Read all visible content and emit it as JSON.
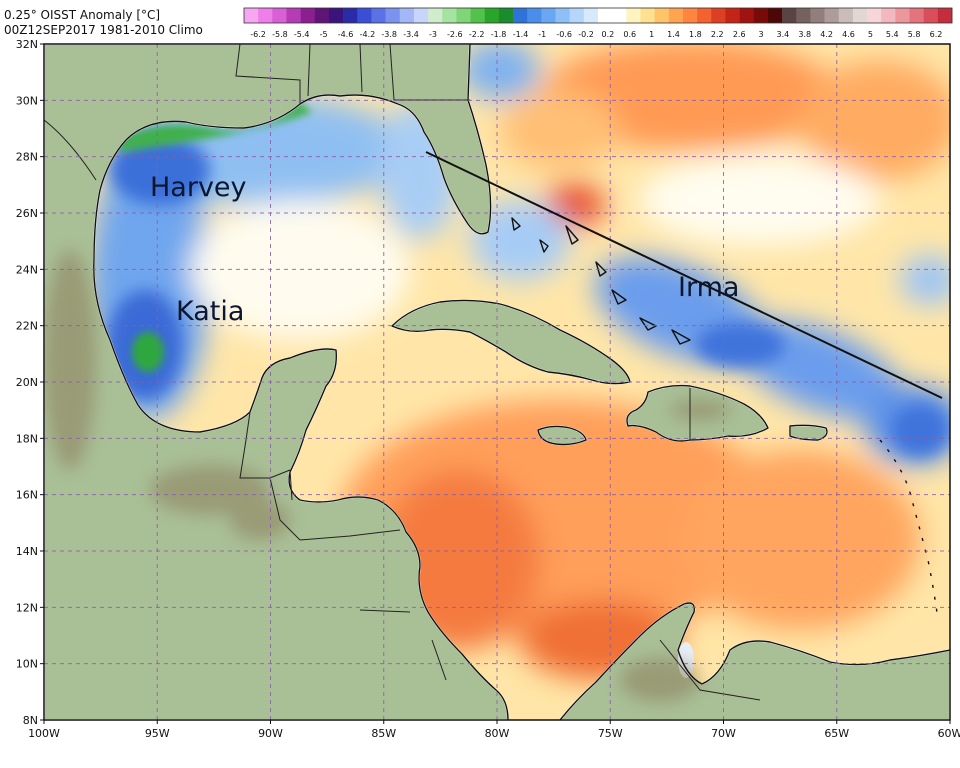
{
  "header": {
    "title_line1": "0.25° OISST Anomaly [°C]",
    "title_line2": "00Z12SEP2017 1981-2010 Climo"
  },
  "colorbar": {
    "labels": [
      "-6.2",
      "-5.8",
      "-5.4",
      "-5",
      "-4.6",
      "-4.2",
      "-3.8",
      "-3.4",
      "-3",
      "-2.6",
      "-2.2",
      "-1.8",
      "-1.4",
      "-1",
      "-0.6",
      "-0.2",
      "0.2",
      "0.6",
      "1",
      "1.4",
      "1.8",
      "2.2",
      "2.6",
      "3",
      "3.4",
      "3.8",
      "4.2",
      "4.6",
      "5",
      "5.4",
      "5.8",
      "6.2"
    ],
    "colors": [
      "#f7a7f2",
      "#ee7fe8",
      "#d95fd4",
      "#b53cb4",
      "#8c1f8f",
      "#5f1476",
      "#3a147a",
      "#2b2ba8",
      "#3a4fd6",
      "#5a72e6",
      "#7b93ef",
      "#a3b6f5",
      "#c8d4fa",
      "#cfeccd",
      "#a6e3a0",
      "#7ed678",
      "#52c24c",
      "#2aa52b",
      "#1a8c2d",
      "#2f73d9",
      "#4b8eea",
      "#6aa6f2",
      "#8ec0f7",
      "#b4d6fb",
      "#d7eafc",
      "#ffffff",
      "#ffffff",
      "#fff3c2",
      "#ffe08e",
      "#ffc46a",
      "#ffa54f",
      "#ff8540",
      "#f4622f",
      "#de3f22",
      "#c42417",
      "#a01310",
      "#7a0a0a",
      "#4d0707",
      "#5a4343",
      "#76615f",
      "#927f7c",
      "#ad9d9a",
      "#c9bcb9",
      "#e2d7d4",
      "#f6d6d8",
      "#f2b8bd",
      "#ec979e",
      "#e3737c",
      "#d84f5b",
      "#c42e3c"
    ]
  },
  "map": {
    "lon_range": [
      -100,
      -60
    ],
    "lat_range": [
      8,
      32
    ],
    "lon_ticks": [
      "100W",
      "95W",
      "90W",
      "85W",
      "80W",
      "75W",
      "70W",
      "65W",
      "60W"
    ],
    "lat_ticks": [
      "8N",
      "10N",
      "12N",
      "14N",
      "16N",
      "18N",
      "20N",
      "22N",
      "24N",
      "26N",
      "28N",
      "30N",
      "32N"
    ],
    "grid": true,
    "annotations": {
      "harvey": "Harvey",
      "katia": "Katia",
      "irma": "Irma"
    },
    "colors": {
      "land": "#a9bf96",
      "land_dark": "#8fa57d",
      "mountain": "#9d9478",
      "warm_light": "#ffe29a",
      "warm_mid": "#ffb566",
      "warm_strong": "#f26a3a",
      "warm_deep": "#d9402a",
      "cool_light": "#cfe6fb",
      "cool_mid": "#8fbff2",
      "cool_strong": "#4f86e3",
      "cool_deep": "#2f5fd0",
      "green_anom": "#3cb04a",
      "coast": "#ffffff",
      "border": "#222222",
      "grid": "#8a5ea8"
    }
  }
}
